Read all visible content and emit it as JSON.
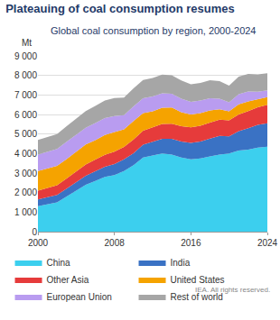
{
  "chart_data": {
    "type": "area",
    "title": "Plateauing of coal consumption resumes",
    "subtitle": "Global coal consumption by region, 2000-2024",
    "ylabel": "Mt",
    "source": "IEA. All rights reserved.",
    "x": [
      2000,
      2001,
      2002,
      2003,
      2004,
      2005,
      2006,
      2007,
      2008,
      2009,
      2010,
      2011,
      2012,
      2013,
      2014,
      2015,
      2016,
      2017,
      2018,
      2019,
      2020,
      2021,
      2022,
      2023,
      2024
    ],
    "series": [
      {
        "name": "China",
        "color": "#3ccfee",
        "values": [
          1300,
          1400,
          1500,
          1800,
          2100,
          2400,
          2600,
          2800,
          2900,
          3100,
          3400,
          3800,
          3900,
          4000,
          3950,
          3800,
          3700,
          3750,
          3850,
          3950,
          4000,
          4150,
          4200,
          4300,
          4350
        ]
      },
      {
        "name": "India",
        "color": "#3a72c4",
        "values": [
          350,
          370,
          380,
          400,
          430,
          460,
          490,
          520,
          560,
          600,
          620,
          650,
          700,
          750,
          800,
          820,
          850,
          870,
          920,
          950,
          880,
          1000,
          1100,
          1170,
          1200
        ]
      },
      {
        "name": "Other Asia",
        "color": "#e63b3b",
        "values": [
          450,
          470,
          500,
          520,
          560,
          580,
          600,
          620,
          640,
          640,
          700,
          720,
          740,
          760,
          780,
          780,
          790,
          800,
          820,
          830,
          820,
          850,
          870,
          900,
          950
        ]
      },
      {
        "name": "United States",
        "color": "#f5a300",
        "values": [
          1000,
          980,
          990,
          1000,
          1010,
          1020,
          1000,
          1010,
          1000,
          900,
          950,
          900,
          820,
          840,
          830,
          720,
          660,
          650,
          620,
          540,
          460,
          520,
          500,
          400,
          390
        ]
      },
      {
        "name": "European Union",
        "color": "#b99cf0",
        "values": [
          850,
          860,
          860,
          880,
          870,
          860,
          870,
          860,
          820,
          720,
          750,
          760,
          760,
          730,
          700,
          690,
          650,
          640,
          620,
          540,
          460,
          520,
          510,
          400,
          340
        ]
      },
      {
        "name": "Rest of world",
        "color": "#a6a6a6",
        "values": [
          750,
          760,
          770,
          800,
          830,
          850,
          880,
          900,
          920,
          900,
          920,
          940,
          950,
          960,
          950,
          930,
          900,
          910,
          920,
          900,
          860,
          900,
          900,
          880,
          880
        ]
      }
    ],
    "stacked": true,
    "xlim": [
      2000,
      2024
    ],
    "xticks": [
      2000,
      2008,
      2016,
      2024
    ],
    "ylim": [
      0,
      9000
    ],
    "yticks": [
      0,
      {
        "value": 1000,
        "label": "1 000"
      },
      {
        "value": 2000,
        "label": "2 000"
      },
      {
        "value": 3000,
        "label": "3 000"
      },
      {
        "value": 4000,
        "label": "4 000"
      },
      {
        "value": 5000,
        "label": "5 000"
      },
      {
        "value": 6000,
        "label": "6 000"
      },
      {
        "value": 7000,
        "label": "7 000"
      },
      {
        "value": 8000,
        "label": "8 000"
      },
      {
        "value": 9000,
        "label": "9 000"
      }
    ],
    "grid": true,
    "legend": "bottom"
  }
}
